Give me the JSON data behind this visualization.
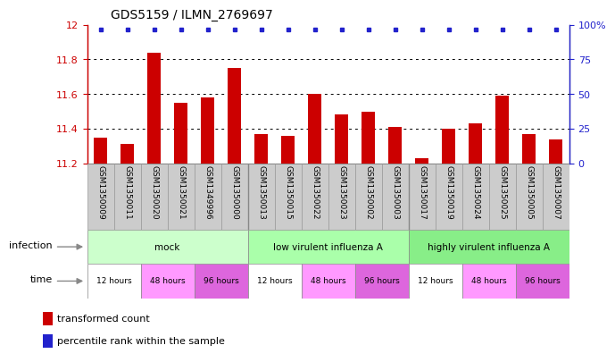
{
  "title": "GDS5159 / ILMN_2769697",
  "samples": [
    "GSM1350009",
    "GSM1350011",
    "GSM1350020",
    "GSM1350021",
    "GSM1349996",
    "GSM1350000",
    "GSM1350013",
    "GSM1350015",
    "GSM1350022",
    "GSM1350023",
    "GSM1350002",
    "GSM1350003",
    "GSM1350017",
    "GSM1350019",
    "GSM1350024",
    "GSM1350025",
    "GSM1350005",
    "GSM1350007"
  ],
  "bar_values": [
    11.35,
    11.31,
    11.84,
    11.55,
    11.58,
    11.75,
    11.37,
    11.36,
    11.6,
    11.48,
    11.5,
    11.41,
    11.23,
    11.4,
    11.43,
    11.59,
    11.37,
    11.34
  ],
  "bar_color": "#cc0000",
  "percentile_color": "#2222cc",
  "ylim_left": [
    11.2,
    12.0
  ],
  "ylim_right": [
    0,
    100
  ],
  "yticks_left": [
    11.2,
    11.4,
    11.6,
    11.8,
    12.0
  ],
  "ytick_labels_left": [
    "11.2",
    "11.4",
    "11.6",
    "11.8",
    "12"
  ],
  "yticks_right": [
    0,
    25,
    50,
    75,
    100
  ],
  "ytick_labels_right": [
    "0",
    "25",
    "50",
    "75",
    "100%"
  ],
  "grid_values": [
    11.4,
    11.6,
    11.8
  ],
  "infection_labels": [
    "mock",
    "low virulent influenza A",
    "highly virulent influenza A"
  ],
  "infection_colors": [
    "#ccffcc",
    "#aaffaa",
    "#88ee88"
  ],
  "time_labels": [
    "12 hours",
    "48 hours",
    "96 hours",
    "12 hours",
    "48 hours",
    "96 hours",
    "12 hours",
    "48 hours",
    "96 hours"
  ],
  "time_colors": [
    "#ffffff",
    "#ff99ff",
    "#dd66dd",
    "#ffffff",
    "#ff99ff",
    "#dd66dd",
    "#ffffff",
    "#ff99ff",
    "#dd66dd"
  ],
  "legend_bar_label": "transformed count",
  "legend_pct_label": "percentile rank within the sample",
  "infection_label": "infection",
  "time_label": "time",
  "n_samples": 18,
  "sample_box_color": "#cccccc",
  "sample_box_edge": "#999999"
}
